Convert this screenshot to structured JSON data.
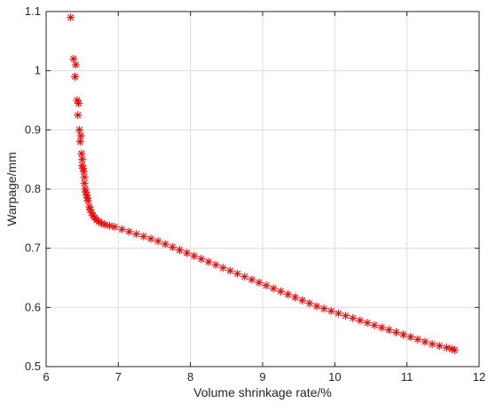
{
  "chart_data": {
    "type": "scatter",
    "title": "",
    "xlabel": "Volume shrinkage rate/%",
    "ylabel": "Warpage/mm",
    "xlim": [
      6,
      12
    ],
    "ylim": [
      0.5,
      1.1
    ],
    "x_ticks": [
      6,
      7,
      8,
      9,
      10,
      11,
      12
    ],
    "x_tick_labels": [
      "6",
      "7",
      "8",
      "9",
      "10",
      "11",
      "12"
    ],
    "y_ticks": [
      0.5,
      0.6,
      0.7,
      0.8,
      0.9,
      1.0,
      1.1
    ],
    "y_tick_labels": [
      "0.5",
      "0.6",
      "0.7",
      "0.8",
      "0.9",
      "1",
      "1.1"
    ],
    "grid": true,
    "marker": "asterisk",
    "marker_color": "#ff0000",
    "series": [
      {
        "x": [
          6.34,
          6.38,
          6.41,
          6.4,
          6.43,
          6.45,
          6.44,
          6.46,
          6.48,
          6.47,
          6.49,
          6.5,
          6.5,
          6.51,
          6.52,
          6.53,
          6.53,
          6.54,
          6.55,
          6.56,
          6.57,
          6.58,
          6.6,
          6.61,
          6.63,
          6.65,
          6.67,
          6.7,
          6.73,
          6.77,
          6.82,
          6.88,
          6.95,
          7.05,
          7.15,
          7.25,
          7.35,
          7.45,
          7.55,
          7.65,
          7.75,
          7.85,
          7.95,
          8.05,
          8.15,
          8.25,
          8.35,
          8.45,
          8.55,
          8.65,
          8.75,
          8.85,
          8.95,
          9.05,
          9.15,
          9.25,
          9.35,
          9.45,
          9.55,
          9.65,
          9.75,
          9.85,
          9.95,
          10.05,
          10.15,
          10.25,
          10.35,
          10.45,
          10.55,
          10.65,
          10.75,
          10.85,
          10.95,
          11.05,
          11.15,
          11.25,
          11.35,
          11.45,
          11.55,
          11.62,
          11.66
        ],
        "y": [
          1.09,
          1.02,
          1.01,
          0.99,
          0.95,
          0.945,
          0.925,
          0.9,
          0.89,
          0.88,
          0.86,
          0.85,
          0.84,
          0.835,
          0.83,
          0.82,
          0.81,
          0.8,
          0.795,
          0.79,
          0.785,
          0.78,
          0.77,
          0.765,
          0.76,
          0.755,
          0.752,
          0.748,
          0.745,
          0.742,
          0.74,
          0.738,
          0.736,
          0.732,
          0.728,
          0.724,
          0.72,
          0.716,
          0.712,
          0.707,
          0.702,
          0.697,
          0.692,
          0.687,
          0.682,
          0.677,
          0.672,
          0.667,
          0.662,
          0.657,
          0.652,
          0.647,
          0.642,
          0.637,
          0.632,
          0.627,
          0.622,
          0.617,
          0.612,
          0.607,
          0.602,
          0.598,
          0.594,
          0.59,
          0.586,
          0.582,
          0.578,
          0.574,
          0.57,
          0.566,
          0.562,
          0.558,
          0.554,
          0.55,
          0.546,
          0.542,
          0.538,
          0.535,
          0.532,
          0.53,
          0.528
        ]
      }
    ]
  }
}
